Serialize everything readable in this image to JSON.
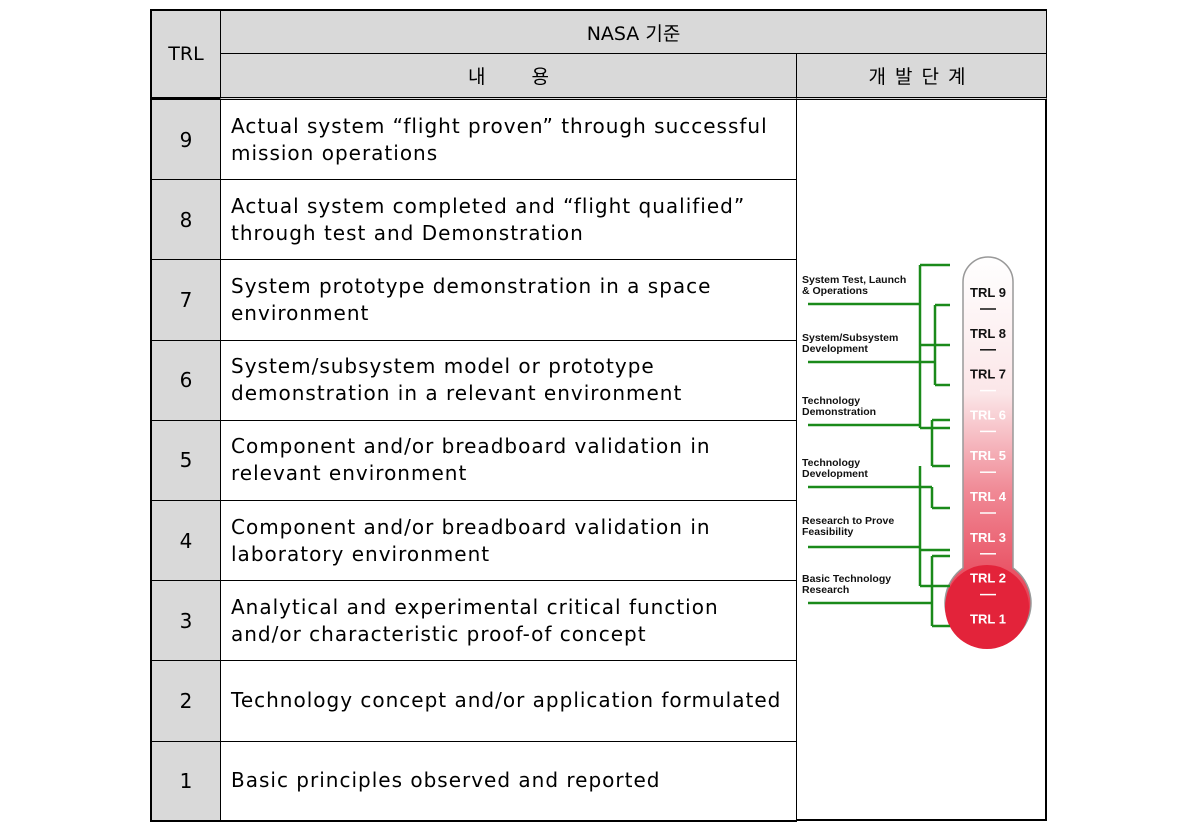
{
  "header": {
    "trl": "TRL",
    "nasa": "NASA 기준",
    "content": "내 용",
    "stage": "개발단계"
  },
  "rows": [
    {
      "level": "9",
      "text": "Actual system “flight proven” through successful mission operations"
    },
    {
      "level": "8",
      "text": "Actual system completed and “flight qualified” through test and Demonstration"
    },
    {
      "level": "7",
      "text": "System prototype demonstration in a space environment"
    },
    {
      "level": "6",
      "text": "System/subsystem model or prototype demonstration in a relevant environment"
    },
    {
      "level": "5",
      "text": "Component and/or breadboard validation in relevant environment"
    },
    {
      "level": "4",
      "text": "Component and/or breadboard validation in laboratory environment"
    },
    {
      "level": "3",
      "text": "Analytical and experimental critical function and/or characteristic proof-of concept"
    },
    {
      "level": "2",
      "text": "Technology concept and/or application formulated"
    },
    {
      "level": "1",
      "text": "Basic principles observed and reported"
    }
  ],
  "diagram": {
    "phases": [
      [
        "System Test, Launch",
        "& Operations"
      ],
      [
        "System/Subsystem",
        "Development"
      ],
      [
        "Technology",
        "Demonstration"
      ],
      [
        "Technology",
        "Development"
      ],
      [
        "Research to Prove",
        "Feasibility"
      ],
      [
        "Basic Technology",
        "Research"
      ]
    ],
    "levels": [
      "TRL 9",
      "TRL 8",
      "TRL 7",
      "TRL 6",
      "TRL 5",
      "TRL 4",
      "TRL 3",
      "TRL 2",
      "TRL 1"
    ]
  }
}
